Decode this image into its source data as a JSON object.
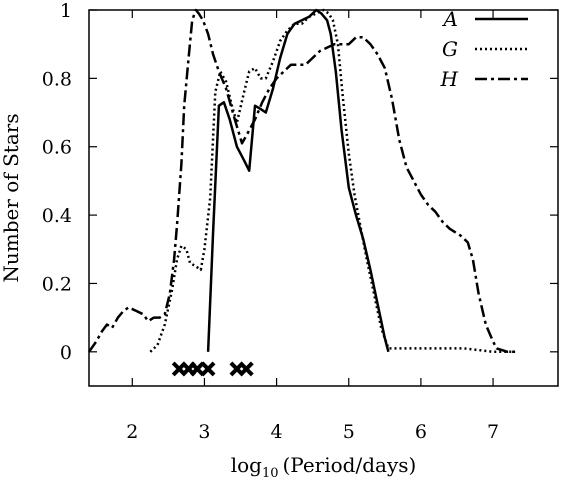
{
  "chart_data": {
    "type": "line",
    "title": "",
    "xlabel": "(Period/days)",
    "xlabel_prefix": "log",
    "xlabel_subscript": "10",
    "ylabel": "Number of Stars",
    "xlim": [
      1.4,
      7.9
    ],
    "ylim": [
      -0.1,
      1.0
    ],
    "xticks": [
      2,
      3,
      4,
      5,
      6,
      7
    ],
    "yticks": [
      0,
      0.2,
      0.4,
      0.6,
      0.8,
      1
    ],
    "xtick_labels": [
      "2",
      "3",
      "4",
      "5",
      "6",
      "7"
    ],
    "ytick_labels": [
      "0",
      "0.2",
      "0.4",
      "0.6",
      "0.8",
      "1"
    ],
    "grid": false,
    "legend_position": "top-right",
    "series": [
      {
        "name": "A",
        "style": "solid",
        "x": [
          3.05,
          3.12,
          3.2,
          3.27,
          3.35,
          3.45,
          3.55,
          3.62,
          3.7,
          3.78,
          3.85,
          3.95,
          4.05,
          4.15,
          4.25,
          4.35,
          4.45,
          4.55,
          4.62,
          4.7,
          4.75,
          4.82,
          4.9,
          5.0,
          5.1,
          5.2,
          5.3,
          5.4,
          5.5,
          5.55
        ],
        "y": [
          0.0,
          0.35,
          0.72,
          0.73,
          0.68,
          0.6,
          0.56,
          0.53,
          0.72,
          0.71,
          0.7,
          0.77,
          0.86,
          0.93,
          0.96,
          0.97,
          0.98,
          1.0,
          0.99,
          0.97,
          0.93,
          0.82,
          0.65,
          0.48,
          0.4,
          0.33,
          0.24,
          0.14,
          0.04,
          0.0
        ]
      },
      {
        "name": "G",
        "style": "dotted",
        "x": [
          2.25,
          2.35,
          2.45,
          2.55,
          2.62,
          2.68,
          2.75,
          2.8,
          2.88,
          2.95,
          3.0,
          3.08,
          3.15,
          3.22,
          3.3,
          3.38,
          3.45,
          3.55,
          3.62,
          3.7,
          3.78,
          3.85,
          3.95,
          4.05,
          4.15,
          4.25,
          4.35,
          4.45,
          4.55,
          4.65,
          4.72,
          4.78,
          4.85,
          4.92,
          5.0,
          5.08,
          5.15,
          5.25,
          5.35,
          5.45,
          5.55,
          6.0,
          6.6,
          7.0,
          7.3
        ],
        "y": [
          0.0,
          0.02,
          0.08,
          0.18,
          0.27,
          0.31,
          0.3,
          0.26,
          0.25,
          0.24,
          0.3,
          0.45,
          0.76,
          0.82,
          0.79,
          0.72,
          0.67,
          0.76,
          0.82,
          0.83,
          0.8,
          0.8,
          0.85,
          0.91,
          0.94,
          0.96,
          0.96,
          0.98,
          0.99,
          1.0,
          0.99,
          0.97,
          0.9,
          0.74,
          0.58,
          0.46,
          0.38,
          0.27,
          0.17,
          0.07,
          0.01,
          0.01,
          0.01,
          0.0,
          0.0
        ]
      },
      {
        "name": "H",
        "style": "dashdot",
        "x": [
          1.4,
          1.5,
          1.58,
          1.65,
          1.72,
          1.8,
          1.88,
          1.95,
          2.05,
          2.15,
          2.22,
          2.3,
          2.38,
          2.45,
          2.52,
          2.58,
          2.62,
          2.68,
          2.72,
          2.78,
          2.83,
          2.88,
          2.92,
          2.98,
          3.05,
          3.12,
          3.2,
          3.3,
          3.42,
          3.52,
          3.6,
          3.7,
          3.8,
          3.9,
          4.0,
          4.1,
          4.2,
          4.3,
          4.4,
          4.5,
          4.6,
          4.7,
          4.8,
          4.9,
          5.0,
          5.1,
          5.2,
          5.3,
          5.4,
          5.5,
          5.6,
          5.7,
          5.8,
          5.9,
          6.0,
          6.1,
          6.2,
          6.3,
          6.4,
          6.55,
          6.6,
          6.65,
          6.72,
          6.8,
          6.9,
          7.0,
          7.05,
          7.2,
          7.35
        ],
        "y": [
          0.0,
          0.03,
          0.06,
          0.08,
          0.07,
          0.1,
          0.12,
          0.13,
          0.12,
          0.11,
          0.09,
          0.1,
          0.1,
          0.11,
          0.17,
          0.27,
          0.37,
          0.55,
          0.72,
          0.86,
          0.97,
          1.0,
          0.99,
          0.97,
          0.93,
          0.87,
          0.82,
          0.77,
          0.68,
          0.61,
          0.64,
          0.68,
          0.73,
          0.77,
          0.8,
          0.82,
          0.84,
          0.84,
          0.84,
          0.86,
          0.88,
          0.89,
          0.9,
          0.9,
          0.9,
          0.92,
          0.92,
          0.9,
          0.87,
          0.83,
          0.74,
          0.62,
          0.54,
          0.5,
          0.46,
          0.43,
          0.41,
          0.38,
          0.36,
          0.34,
          0.33,
          0.32,
          0.27,
          0.17,
          0.08,
          0.03,
          0.01,
          0.0,
          0.0
        ]
      }
    ],
    "markers": {
      "symbol": "x",
      "y": -0.05,
      "x": [
        2.65,
        2.78,
        2.9,
        3.05,
        3.45,
        3.58
      ]
    }
  }
}
